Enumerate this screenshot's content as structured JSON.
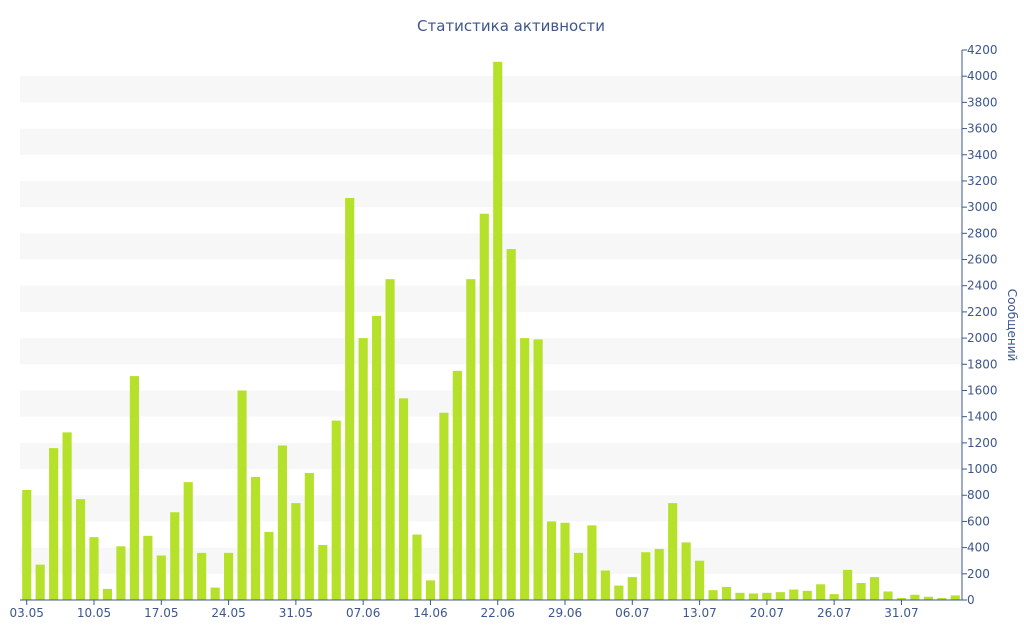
{
  "chart_data": {
    "type": "bar",
    "title": "Статистика активности",
    "xlabel": "",
    "ylabel": "Сообщений",
    "ylim": [
      0,
      4200
    ],
    "y_tick_step": 200,
    "grid": "alternating horizontal bands",
    "y_axis_side": "right",
    "colors": {
      "bar": "#b5e12b",
      "band": "#f7f7f7",
      "axis": "#3d578c",
      "text": "#3d578c"
    },
    "x_tick_labels": [
      {
        "label": "03.05",
        "index": 0
      },
      {
        "label": "10.05",
        "index": 5
      },
      {
        "label": "17.05",
        "index": 10
      },
      {
        "label": "24.05",
        "index": 15
      },
      {
        "label": "31.05",
        "index": 20
      },
      {
        "label": "07.06",
        "index": 25
      },
      {
        "label": "14.06",
        "index": 30
      },
      {
        "label": "22.06",
        "index": 35
      },
      {
        "label": "29.06",
        "index": 40
      },
      {
        "label": "06.07",
        "index": 45
      },
      {
        "label": "13.07",
        "index": 50
      },
      {
        "label": "20.07",
        "index": 55
      },
      {
        "label": "26.07",
        "index": 60
      },
      {
        "label": "31.07",
        "index": 65
      }
    ],
    "values": [
      840,
      270,
      1160,
      1280,
      770,
      480,
      85,
      410,
      1710,
      490,
      340,
      670,
      900,
      360,
      95,
      360,
      1600,
      940,
      520,
      1180,
      740,
      970,
      420,
      1370,
      3070,
      2000,
      2170,
      2450,
      1540,
      500,
      150,
      1430,
      1750,
      2450,
      2950,
      4110,
      2680,
      2000,
      1990,
      600,
      590,
      360,
      570,
      225,
      110,
      175,
      365,
      390,
      740,
      440,
      300,
      75,
      100,
      55,
      50,
      55,
      60,
      80,
      70,
      120,
      45,
      230,
      130,
      175,
      65,
      15,
      40,
      25,
      15,
      35
    ]
  }
}
